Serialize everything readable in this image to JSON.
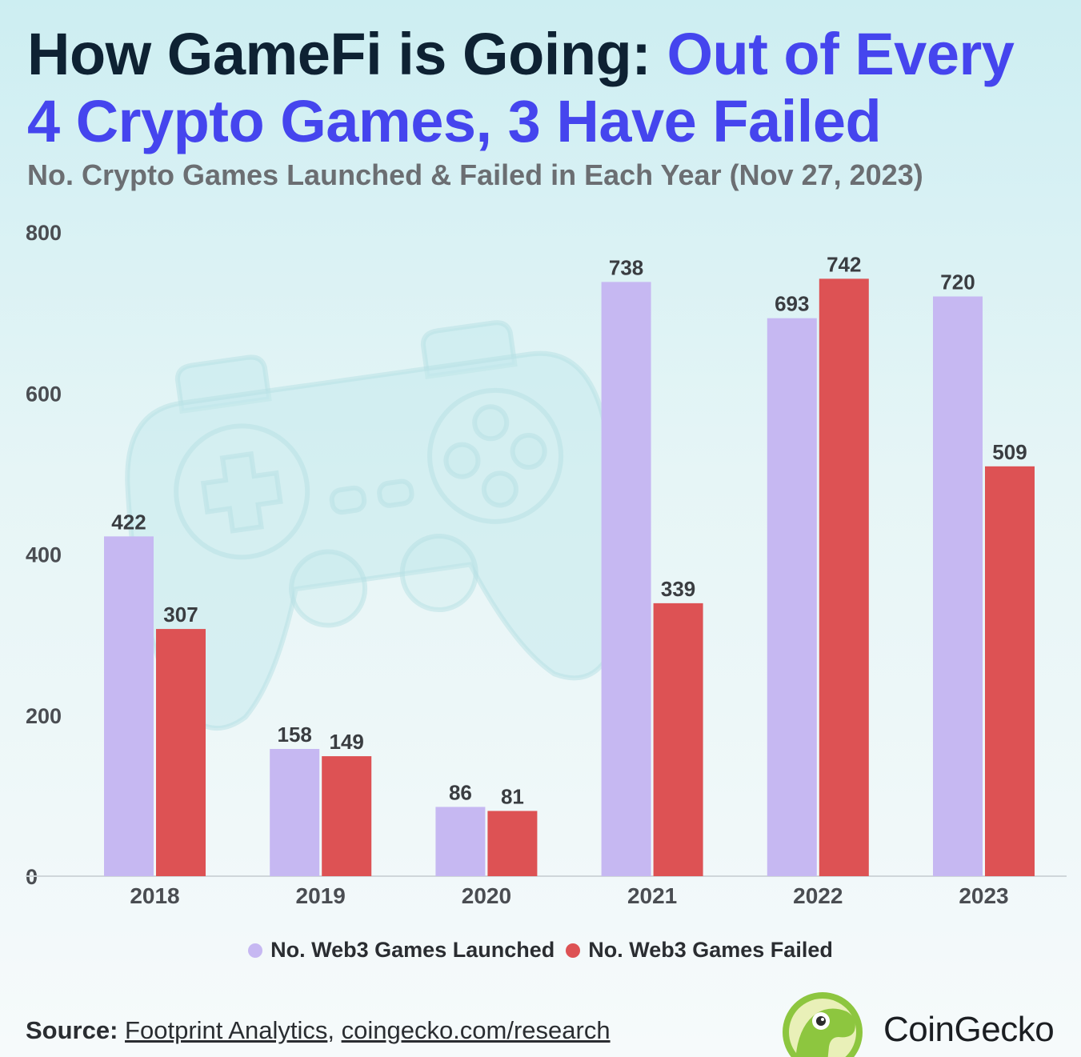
{
  "title": {
    "part1": "How GameFi is Going: ",
    "part2": "Out of Every",
    "part3": "4 Crypto Games, 3 Have Failed"
  },
  "subtitle": "No. Crypto Games Launched & Failed in Each Year (Nov 27, 2023)",
  "source": {
    "label": "Source:",
    "link1": "Footprint Analytics",
    "separator": ",",
    "link2": "coingecko.com/research"
  },
  "brand": {
    "name": "CoinGecko"
  },
  "colors": {
    "title_dark": "#0e2233",
    "title_accent": "#4545ee",
    "launched": "#c6b8f2",
    "failed": "#dd5254",
    "axis_text": "#4a4d52"
  },
  "icons": [
    "game-controller-icon",
    "coingecko-logo-icon"
  ],
  "chart_data": {
    "type": "bar",
    "categories": [
      "2018",
      "2019",
      "2020",
      "2021",
      "2022",
      "2023"
    ],
    "series": [
      {
        "name": "No. Web3 Games Launched",
        "values": [
          422,
          158,
          86,
          738,
          693,
          720
        ],
        "color": "#c6b8f2"
      },
      {
        "name": "No. Web3 Games Failed",
        "values": [
          307,
          149,
          81,
          339,
          742,
          509
        ],
        "color": "#dd5254"
      }
    ],
    "title": "How GameFi is Going: Out of Every 4 Crypto Games, 3 Have Failed",
    "subtitle": "No. Crypto Games Launched & Failed in Each Year (Nov 27, 2023)",
    "xlabel": "",
    "ylabel": "",
    "yticks": [
      0,
      200,
      400,
      600,
      800
    ],
    "ylim": [
      0,
      800
    ],
    "grid": false,
    "legend": "bottom-center",
    "data_labels": true
  }
}
